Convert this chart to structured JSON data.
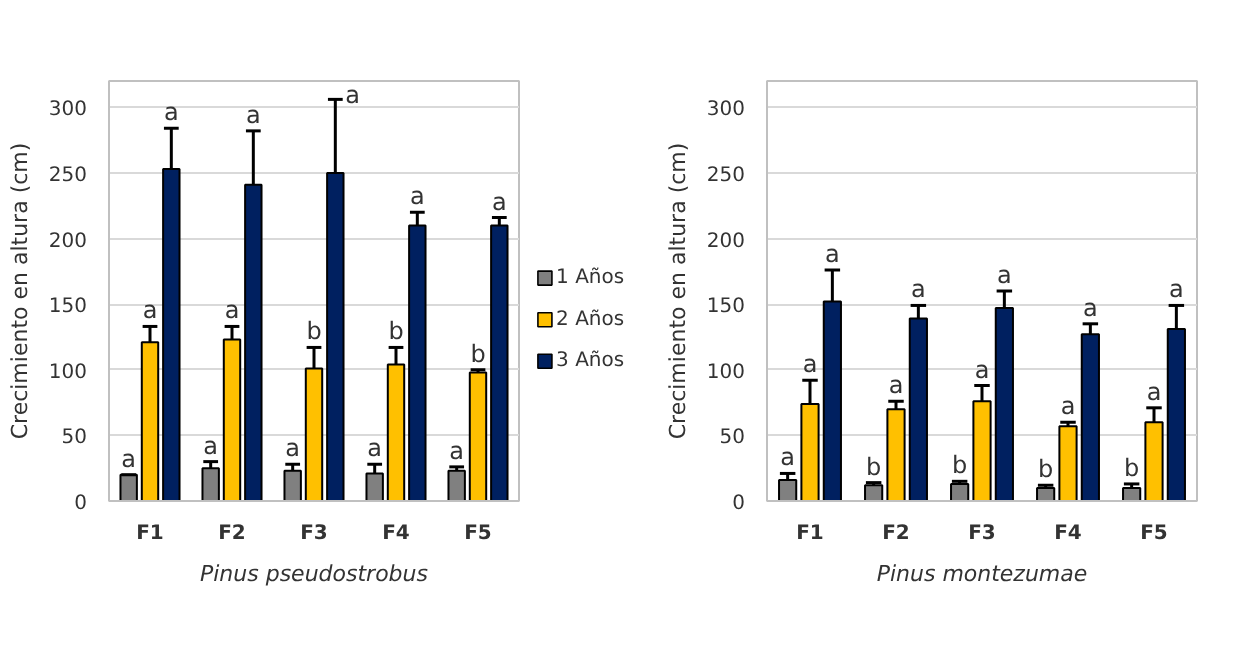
{
  "chart_data": [
    {
      "type": "bar",
      "categories": [
        "F1",
        "F2",
        "F3",
        "F4",
        "F5"
      ],
      "xlabel": "Pinus pseudostrobus",
      "ylabel": "Crecimiento en altura (cm)",
      "ylim": [
        0,
        320
      ],
      "yticks": [
        0,
        50,
        100,
        150,
        200,
        250,
        300
      ],
      "grid": "y",
      "legend": "right",
      "series": [
        {
          "name": "1 Años",
          "color": "#808080",
          "values": [
            20,
            25,
            23,
            21,
            23
          ],
          "errors": [
            [
              20,
              20
            ],
            [
              25,
              30
            ],
            [
              23,
              28
            ],
            [
              21,
              28
            ],
            [
              23,
              26
            ]
          ],
          "value_labels": [
            "a",
            "a",
            "a",
            "a",
            "a"
          ]
        },
        {
          "name": "2 Años",
          "color": "#ffc000",
          "values": [
            121,
            123,
            101,
            104,
            98
          ],
          "errors": [
            [
              121,
              133
            ],
            [
              123,
              133
            ],
            [
              101,
              117
            ],
            [
              104,
              117
            ],
            [
              98,
              100
            ]
          ],
          "value_labels": [
            "a",
            "a",
            "b",
            "b",
            "b"
          ]
        },
        {
          "name": "3 Años",
          "color": "#002060",
          "values": [
            253,
            241,
            250,
            210,
            210
          ],
          "errors": [
            [
              253,
              284
            ],
            [
              241,
              282
            ],
            [
              250,
              306
            ],
            [
              210,
              220
            ],
            [
              210,
              216
            ]
          ],
          "value_labels": [
            "a",
            "a",
            "a",
            "a",
            "a"
          ]
        }
      ]
    },
    {
      "type": "bar",
      "categories": [
        "F1",
        "F2",
        "F3",
        "F4",
        "F5"
      ],
      "xlabel": "Pinus montezumae",
      "ylabel": "Crecimiento en altura (cm)",
      "ylim": [
        0,
        320
      ],
      "yticks": [
        0,
        50,
        100,
        150,
        200,
        250,
        300
      ],
      "grid": "y",
      "series": [
        {
          "color": "#808080",
          "values": [
            16,
            12,
            13,
            10,
            10
          ],
          "errors": [
            [
              16,
              21
            ],
            [
              12,
              14
            ],
            [
              13,
              15
            ],
            [
              10,
              12
            ],
            [
              10,
              13
            ]
          ],
          "value_labels": [
            "a",
            "b",
            "b",
            "b",
            "b"
          ]
        },
        {
          "color": "#ffc000",
          "values": [
            74,
            70,
            76,
            57,
            60
          ],
          "errors": [
            [
              74,
              92
            ],
            [
              70,
              76
            ],
            [
              76,
              88
            ],
            [
              57,
              60
            ],
            [
              60,
              71
            ]
          ],
          "value_labels": [
            "a",
            "a",
            "a",
            "a",
            "a"
          ]
        },
        {
          "color": "#002060",
          "values": [
            152,
            139,
            147,
            127,
            131
          ],
          "errors": [
            [
              152,
              176
            ],
            [
              139,
              149
            ],
            [
              147,
              160
            ],
            [
              127,
              135
            ],
            [
              131,
              149
            ]
          ],
          "value_labels": [
            "a",
            "a",
            "a",
            "a",
            "a"
          ]
        }
      ]
    }
  ]
}
